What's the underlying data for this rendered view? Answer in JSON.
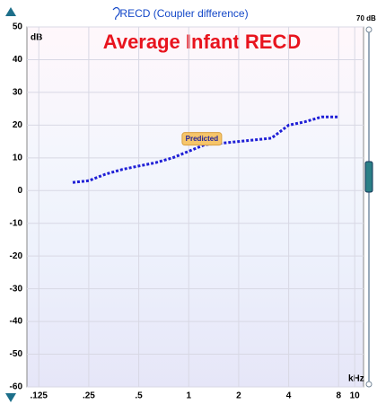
{
  "chart_data": {
    "type": "line",
    "header": "RECD (Coupler difference)",
    "title": "Average Infant RECD",
    "ylabel": "dB",
    "xlabel": "kHz",
    "slider_label": "70 dB",
    "annotation": "Predicted",
    "xscale": "log",
    "grid": true,
    "x": [
      0.2,
      0.25,
      0.315,
      0.4,
      0.5,
      0.63,
      0.8,
      1,
      1.25,
      1.6,
      2,
      2.5,
      3.15,
      4,
      5,
      6.3,
      8
    ],
    "series": [
      {
        "color": "#1f1fd6",
        "values": [
          2.5,
          3,
          5,
          6.5,
          7.5,
          8.5,
          10,
          12,
          14,
          14.5,
          15,
          15.5,
          16,
          20,
          21,
          22.5,
          22.5
        ]
      }
    ],
    "xlim": [
      0.106,
      11.3
    ],
    "xticks": [
      {
        "value": 0.125,
        "label": ".125"
      },
      {
        "value": 0.25,
        "label": ".25"
      },
      {
        "value": 0.5,
        "label": ".5"
      },
      1,
      2,
      4,
      8,
      10
    ],
    "ylim": [
      -60,
      50
    ],
    "yticks": [
      50,
      40,
      30,
      20,
      10,
      0,
      -10,
      -20,
      -30,
      -40,
      -50,
      -60
    ]
  }
}
